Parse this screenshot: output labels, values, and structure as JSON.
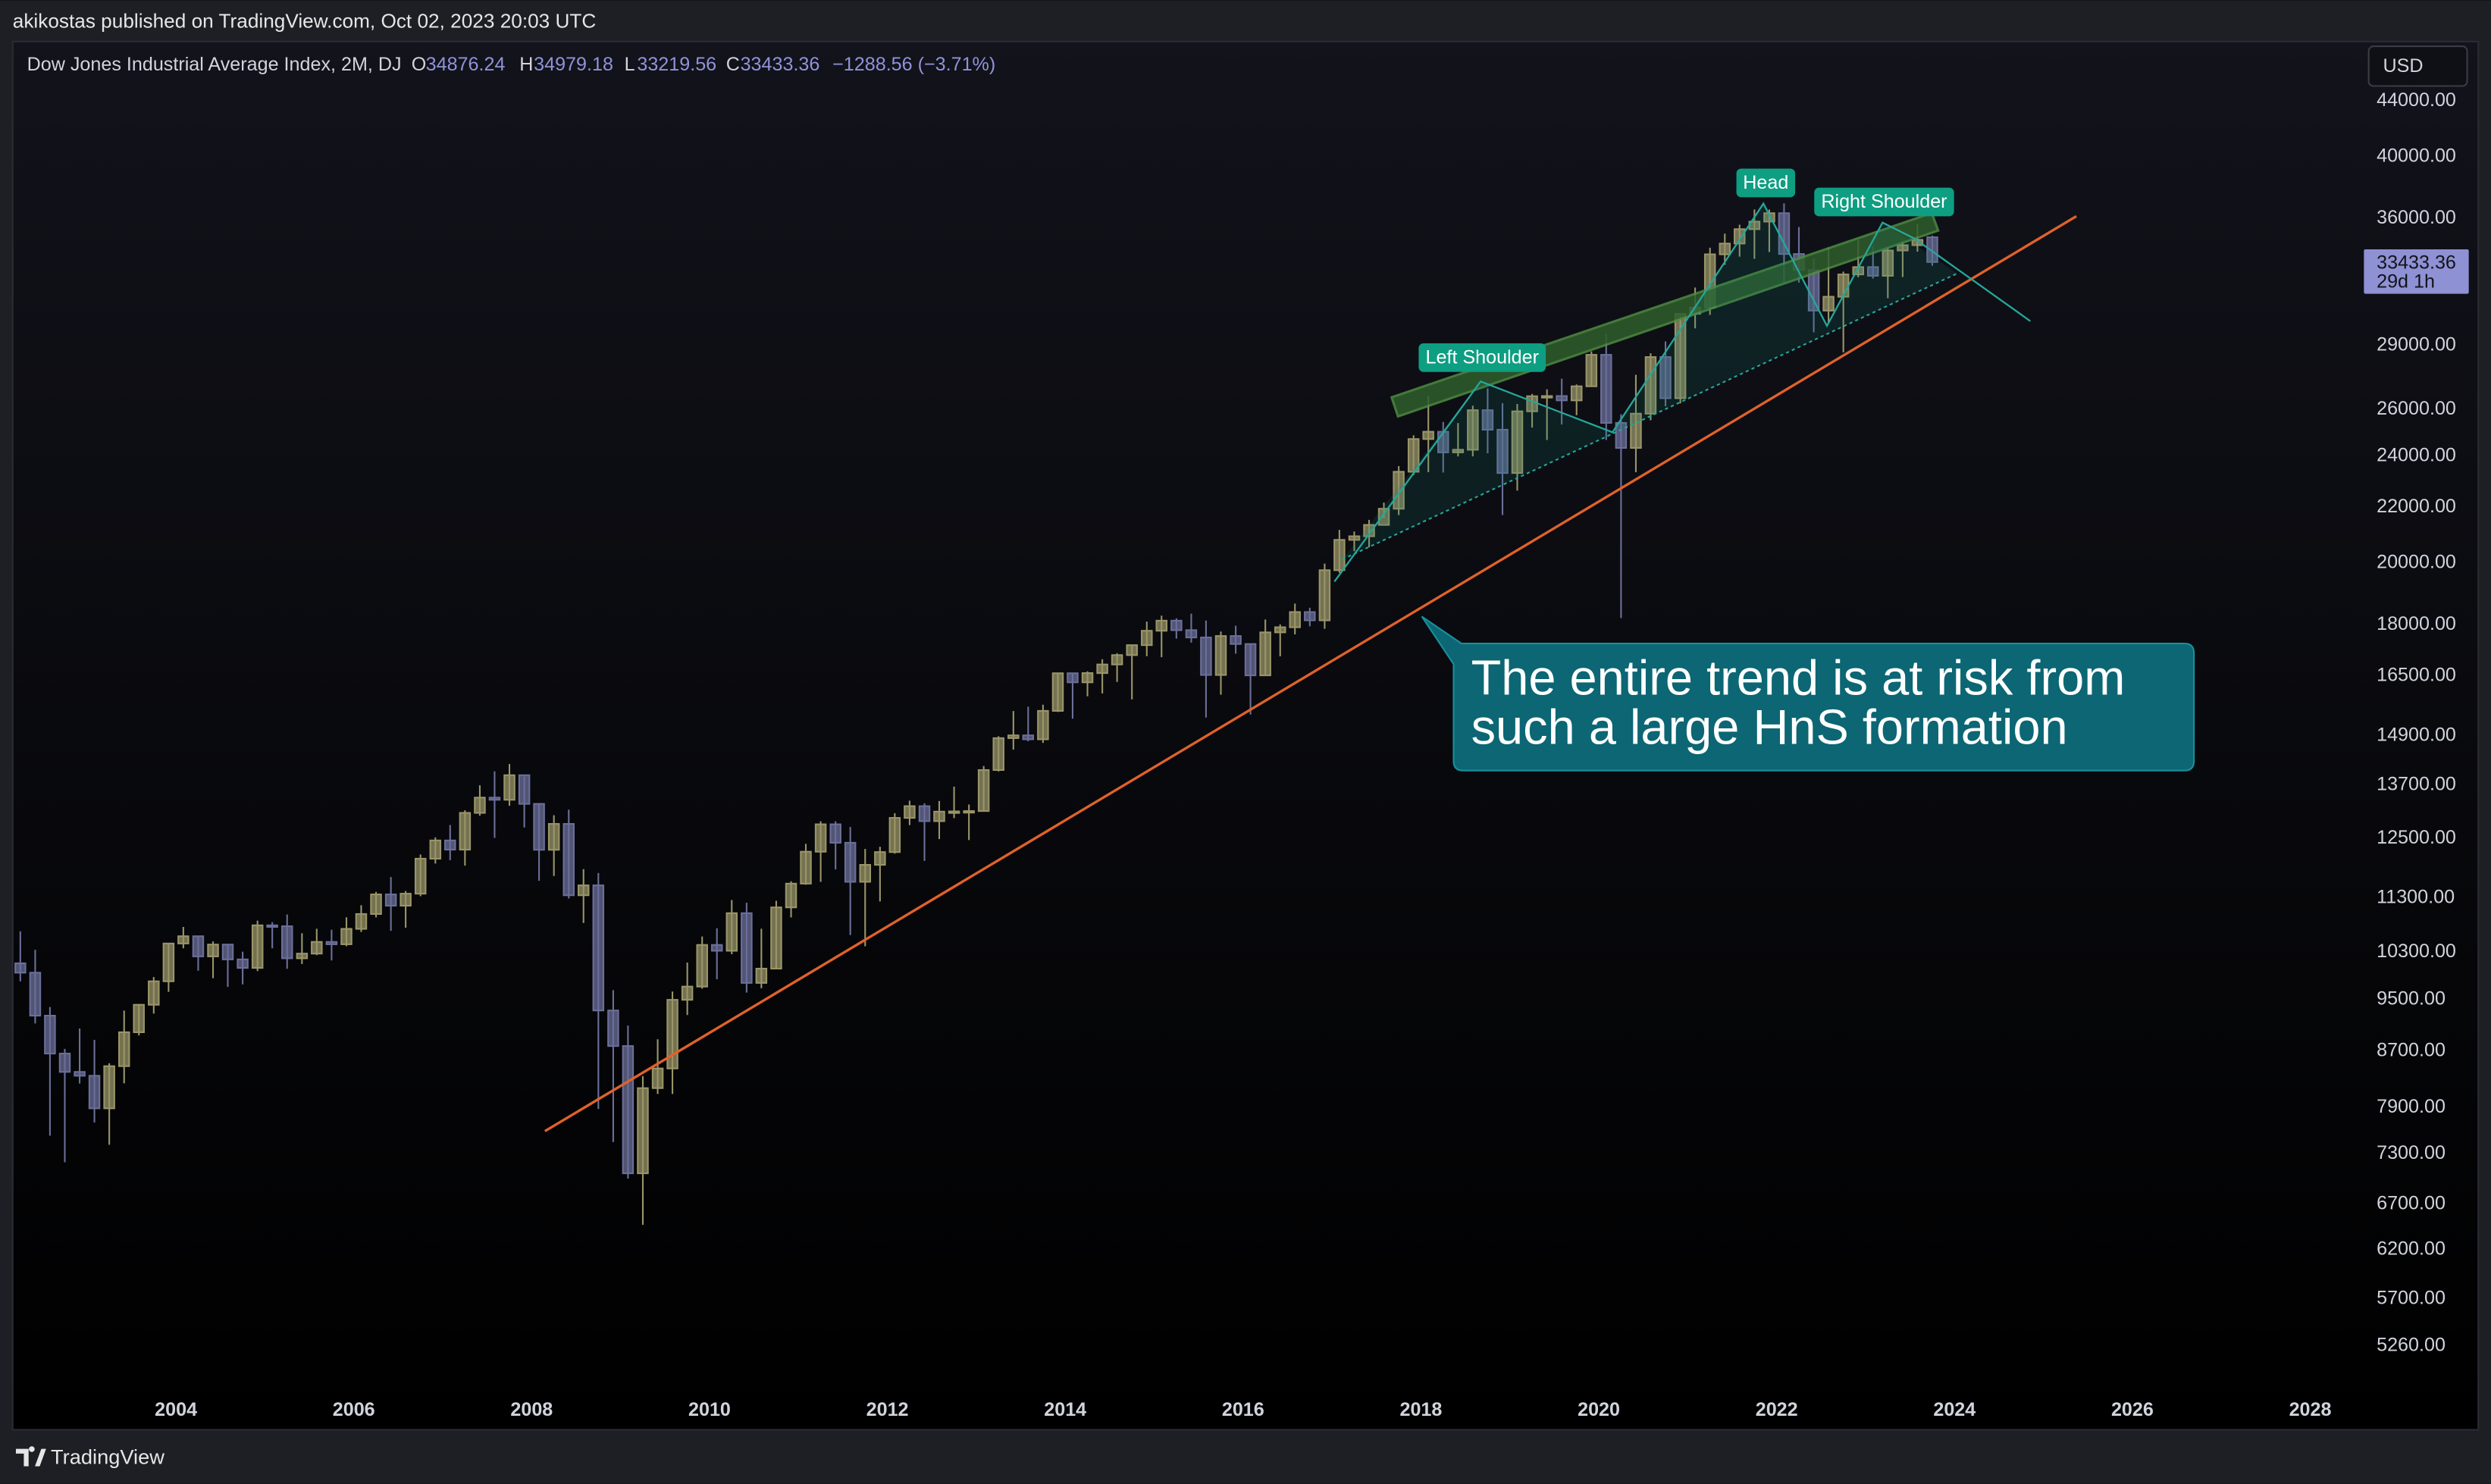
{
  "header": {
    "publisher": "akikostas published on TradingView.com, Oct 02, 2023 20:03 UTC",
    "symbol": "Dow Jones Industrial Average Index, 2M, DJ",
    "o": "O",
    "h": "H",
    "l": "L",
    "c": "C",
    "change": "−1288.56 (−3.71%)",
    "currency": "USD",
    "countdown": "29d 1h",
    "brand": "TradingView"
  },
  "chart_data": {
    "type": "candlestick",
    "log_scale": true,
    "grid": false,
    "up_color": "#9a9568",
    "down_color": "#6b6f99",
    "labels": {
      "left": "Left Shoulder",
      "head": "Head",
      "right": "Right Shoulder"
    },
    "annotation": [
      "The entire trend is at risk from",
      "such a large HnS formation"
    ],
    "xlim": [
      2002.2,
      2028.55
    ],
    "xticks": [
      2004,
      2006,
      2008,
      2010,
      2012,
      2014,
      2016,
      2018,
      2020,
      2022,
      2024,
      2026,
      2028
    ],
    "ylim": [
      4880,
      48700
    ],
    "yticks": [
      {
        "value": 44000,
        "label": "44000.00"
      },
      {
        "value": 40000,
        "label": "40000.00"
      },
      {
        "value": 36000,
        "label": "36000.00"
      },
      {
        "value": 29000,
        "label": "29000.00"
      },
      {
        "value": 26000,
        "label": "26000.00"
      },
      {
        "value": 24000,
        "label": "24000.00"
      },
      {
        "value": 22000,
        "label": "22000.00"
      },
      {
        "value": 20000,
        "label": "20000.00"
      },
      {
        "value": 18000,
        "label": "18000.00"
      },
      {
        "value": 16500,
        "label": "16500.00"
      },
      {
        "value": 14900,
        "label": "14900.00"
      },
      {
        "value": 13700,
        "label": "13700.00"
      },
      {
        "value": 12500,
        "label": "12500.00"
      },
      {
        "value": 11300,
        "label": "11300.00"
      },
      {
        "value": 10300,
        "label": "10300.00"
      },
      {
        "value": 9500,
        "label": "9500.00"
      },
      {
        "value": 8700,
        "label": "8700.00"
      },
      {
        "value": 7900,
        "label": "7900.00"
      },
      {
        "value": 7300,
        "label": "7300.00"
      },
      {
        "value": 6700,
        "label": "6700.00"
      },
      {
        "value": 6200,
        "label": "6200.00"
      },
      {
        "value": 5700,
        "label": "5700.00"
      },
      {
        "value": 5260,
        "label": "5260.00"
      }
    ],
    "x": [
      2002.25,
      2002.417,
      2002.583,
      2002.75,
      2002.917,
      2003.083,
      2003.25,
      2003.417,
      2003.583,
      2003.75,
      2003.917,
      2004.083,
      2004.25,
      2004.417,
      2004.583,
      2004.75,
      2004.917,
      2005.083,
      2005.25,
      2005.417,
      2005.583,
      2005.75,
      2005.917,
      2006.083,
      2006.25,
      2006.417,
      2006.583,
      2006.75,
      2006.917,
      2007.083,
      2007.25,
      2007.417,
      2007.583,
      2007.75,
      2007.917,
      2008.083,
      2008.25,
      2008.417,
      2008.583,
      2008.75,
      2008.917,
      2009.083,
      2009.25,
      2009.417,
      2009.583,
      2009.75,
      2009.917,
      2010.083,
      2010.25,
      2010.417,
      2010.583,
      2010.75,
      2010.917,
      2011.083,
      2011.25,
      2011.417,
      2011.583,
      2011.75,
      2011.917,
      2012.083,
      2012.25,
      2012.417,
      2012.583,
      2012.75,
      2012.917,
      2013.083,
      2013.25,
      2013.417,
      2013.583,
      2013.75,
      2013.917,
      2014.083,
      2014.25,
      2014.417,
      2014.583,
      2014.75,
      2014.917,
      2015.083,
      2015.25,
      2015.417,
      2015.583,
      2015.75,
      2015.917,
      2016.083,
      2016.25,
      2016.417,
      2016.583,
      2016.75,
      2016.917,
      2017.083,
      2017.25,
      2017.417,
      2017.583,
      2017.75,
      2017.917,
      2018.083,
      2018.25,
      2018.417,
      2018.583,
      2018.75,
      2018.917,
      2019.083,
      2019.25,
      2019.417,
      2019.583,
      2019.75,
      2019.917,
      2020.083,
      2020.25,
      2020.417,
      2020.583,
      2020.75,
      2020.917,
      2021.083,
      2021.25,
      2021.417,
      2021.583,
      2021.75,
      2021.917,
      2022.083,
      2022.25,
      2022.417,
      2022.583,
      2022.75,
      2022.917,
      2023.083,
      2023.25,
      2023.417,
      2023.583,
      2023.75
    ],
    "open": [
      10106,
      9946,
      9243,
      8664,
      8397,
      8342,
      7891,
      8480,
      8985,
      9416,
      9801,
      10454,
      10584,
      10226,
      10435,
      10174,
      10027,
      10783,
      10766,
      10193,
      10275,
      10482,
      10440,
      10718,
      10993,
      11367,
      11150,
      11381,
      12081,
      12463,
      12269,
      13063,
      13408,
      13358,
      13930,
      13265,
      12266,
      12820,
      11350,
      11544,
      9325,
      8776,
      7063,
      8168,
      8447,
      9496,
      9713,
      10428,
      10325,
      11009,
      9774,
      10015,
      11118,
      11578,
      12226,
      12811,
      12414,
      11614,
      11955,
      12218,
      12952,
      13214,
      12880,
      13091,
      13096,
      13104,
      14054,
      14840,
      14910,
      14810,
      15546,
      16577,
      16322,
      16581,
      16827,
      17098,
      17391,
      17823,
      18133,
      17841,
      17620,
      16528,
      17664,
      17425,
      16517,
      17774,
      17930,
      18401,
      18142,
      19763,
      20812,
      20941,
      21350,
      21948,
      23377,
      24719,
      25029,
      24163,
      24271,
      25965,
      25116,
      23327,
      25916,
      26593,
      26600,
      26403,
      27046,
      28538,
      25409,
      24346,
      25813,
      28430,
      26502,
      30606,
      30932,
      33875,
      34503,
      35361,
      35820,
      36338,
      33893,
      32977,
      30775,
      31510,
      32733,
      33147,
      32657,
      34098,
      34408,
      34876.24
    ],
    "high": [
      10673,
      10342,
      9379,
      8734,
      9043,
      8869,
      8522,
      9323,
      9428,
      9872,
      10462,
      10753,
      10570,
      10490,
      10437,
      10309,
      10868,
      10842,
      10984,
      10638,
      10720,
      10702,
      10931,
      11159,
      11416,
      11709,
      11433,
      12167,
      12529,
      12795,
      13121,
      13692,
      14022,
      14198,
      13897,
      13279,
      13010,
      13136,
      11867,
      11790,
      9654,
      9088,
      8338,
      8877,
      9631,
      10119,
      10580,
      10729,
      11258,
      11205,
      10720,
      11244,
      11625,
      12391,
      12876,
      12876,
      12753,
      12284,
      12328,
      13056,
      13338,
      13279,
      13330,
      13661,
      13250,
      14150,
      14888,
      15542,
      15658,
      15710,
      16589,
      16588,
      16631,
      16978,
      17152,
      17395,
      18103,
      18288,
      18207,
      18351,
      18137,
      17799,
      17977,
      17405,
      18167,
      18016,
      18668,
      18537,
      19987,
      21169,
      21112,
      21535,
      22179,
      23602,
      24876,
      26617,
      25449,
      25402,
      26168,
      26952,
      26278,
      26242,
      26695,
      26907,
      27398,
      27130,
      28702,
      29568,
      25786,
      27580,
      28615,
      29199,
      30637,
      32010,
      34257,
      35091,
      35631,
      36566,
      36565,
      36952,
      35492,
      33636,
      34281,
      32889,
      34712,
      34342,
      34257,
      34588,
      35679,
      34979.18
    ],
    "low": [
      9800,
      9120,
      7532,
      7197,
      8232,
      7702,
      7416,
      8235,
      8936,
      9275,
      9627,
      10368,
      9979,
      9853,
      9708,
      9749,
      9973,
      10368,
      10012,
      10094,
      10247,
      10156,
      10406,
      10661,
      10929,
      10683,
      10739,
      11332,
      11981,
      12050,
      11939,
      13000,
      12518,
      13223,
      12743,
      11634,
      11731,
      11287,
      10827,
      7882,
      7449,
      7000,
      6469,
      8087,
      8087,
      9252,
      9678,
      9835,
      10265,
      9614,
      9686,
      10008,
      10929,
      11555,
      11613,
      11862,
      10604,
      10404,
      11231,
      12185,
      12793,
      12035,
      12492,
      12947,
      12471,
      13104,
      14018,
      14551,
      14760,
      14719,
      15516,
      15340,
      15937,
      16015,
      16333,
      15855,
      17067,
      17037,
      17585,
      17465,
      15370,
      15979,
      17139,
      15450,
      16510,
      17063,
      17713,
      17959,
      17884,
      19677,
      20413,
      20553,
      21600,
      21709,
      23242,
      23360,
      23344,
      23997,
      23997,
      24122,
      21713,
      22639,
      25208,
      24680,
      25339,
      25744,
      27043,
      24681,
      18213,
      23361,
      25524,
      26143,
      26269,
      29856,
      30547,
      33271,
      33741,
      33613,
      34006,
      32272,
      32273,
      29653,
      30143,
      28660,
      32573,
      32500,
      31430,
      32586,
      34029,
      33219.56
    ],
    "close": [
      9946,
      9243,
      8664,
      8397,
      8342,
      7891,
      8480,
      8985,
      9416,
      9801,
      10454,
      10584,
      10226,
      10435,
      10174,
      10027,
      10783,
      10766,
      10193,
      10275,
      10482,
      10440,
      10718,
      10993,
      11367,
      11150,
      11381,
      12081,
      12463,
      12269,
      13063,
      13408,
      13358,
      13930,
      13265,
      12266,
      12820,
      11350,
      11544,
      9325,
      8776,
      7063,
      8168,
      8447,
      9496,
      9713,
      10428,
      10325,
      11009,
      9774,
      10015,
      11118,
      11578,
      12226,
      12811,
      12414,
      11614,
      11955,
      12218,
      12952,
      13214,
      12880,
      13091,
      13096,
      13104,
      14054,
      14840,
      14910,
      14810,
      15546,
      16577,
      16322,
      16581,
      16827,
      17098,
      17391,
      17823,
      18133,
      17841,
      17620,
      16528,
      17664,
      17425,
      16517,
      17774,
      17930,
      18401,
      18142,
      19763,
      20812,
      20941,
      21350,
      21948,
      23377,
      24719,
      25029,
      24163,
      24271,
      25965,
      25116,
      23327,
      25916,
      26593,
      26600,
      26403,
      27046,
      28538,
      25409,
      24346,
      25813,
      28430,
      26502,
      30606,
      30932,
      33875,
      34503,
      35361,
      35820,
      36338,
      33893,
      32977,
      30775,
      31510,
      32733,
      33147,
      32657,
      34098,
      34408,
      34722,
      33433.36
    ]
  }
}
